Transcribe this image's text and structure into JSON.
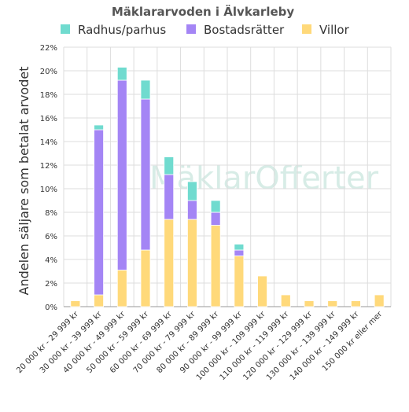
{
  "chart_data": {
    "type": "bar",
    "stacked": true,
    "title": "Mäklararvoden i Älvkarleby",
    "ylabel": "Andelen säljare som betalat arvodet",
    "xlabel": "",
    "ylim": [
      0,
      22
    ],
    "ytick_labels": [
      "0%",
      "2%",
      "4%",
      "6%",
      "8%",
      "10%",
      "12%",
      "14%",
      "16%",
      "18%",
      "20%",
      "22%"
    ],
    "grid": true,
    "legend_position": "top",
    "watermark": "MäklarOfferter",
    "categories": [
      "20 000 kr - 29 999 kr",
      "30 000 kr - 39 999 kr",
      "40 000 kr - 49 999 kr",
      "50 000 kr - 59 999 kr",
      "60 000 kr - 69 999 kr",
      "70 000 kr - 79 999 kr",
      "80 000 kr - 89 999 kr",
      "90 000 kr - 99 999 kr",
      "100 000 kr - 109 999 kr",
      "110 000 kr - 119 999 kr",
      "120 000 kr - 129 999 kr",
      "130 000 kr - 139 999 kr",
      "140 000 kr - 149 999 kr",
      "150 000 kr eller mer"
    ],
    "series": [
      {
        "name": "Villor",
        "color": "#ffd97a",
        "values": [
          0.5,
          1.0,
          3.1,
          4.8,
          7.4,
          7.4,
          6.9,
          4.3,
          2.6,
          1.0,
          0.5,
          0.5,
          0.5,
          1.0
        ]
      },
      {
        "name": "Bostadsrätter",
        "color": "#a485f5",
        "values": [
          0,
          14.0,
          16.1,
          12.8,
          3.8,
          1.6,
          1.1,
          0.5,
          0,
          0,
          0,
          0,
          0,
          0
        ]
      },
      {
        "name": "Radhus/parhus",
        "color": "#70dbcf",
        "values": [
          0,
          0.4,
          1.1,
          1.6,
          1.5,
          1.6,
          1.0,
          0.5,
          0,
          0,
          0,
          0,
          0,
          0
        ]
      }
    ],
    "legend_order": [
      "Radhus/parhus",
      "Bostadsrätter",
      "Villor"
    ]
  }
}
